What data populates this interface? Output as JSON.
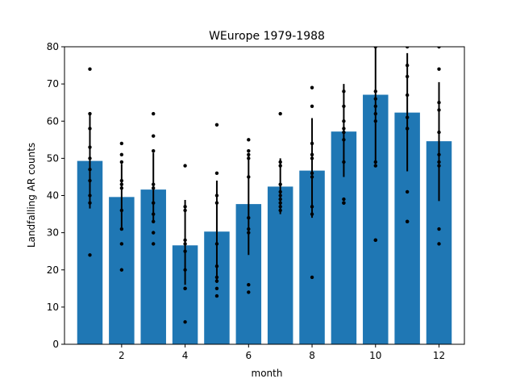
{
  "chart_data": {
    "type": "bar",
    "title": "WEurope 1979-1988",
    "xlabel": "month",
    "ylabel": "Landfalling AR counts",
    "xlim": [
      0.2,
      12.8
    ],
    "ylim": [
      0,
      80
    ],
    "xticks": [
      2,
      4,
      6,
      8,
      10,
      12
    ],
    "yticks": [
      0,
      10,
      20,
      30,
      40,
      50,
      60,
      70,
      80
    ],
    "bar_color": "#1f77b4",
    "point_color": "#000000",
    "errorbar_color": "#000000",
    "grid": false,
    "categories": [
      1,
      2,
      3,
      4,
      5,
      6,
      7,
      8,
      9,
      10,
      11,
      12
    ],
    "values": [
      49.3,
      39.6,
      41.6,
      26.6,
      30.3,
      37.7,
      42.4,
      46.7,
      57.2,
      67.1,
      62.3,
      54.6
    ],
    "error_low": [
      36.5,
      31.0,
      33.0,
      16.0,
      16.5,
      24.0,
      35.0,
      34.0,
      45.0,
      48.5,
      46.5,
      38.5
    ],
    "error_high": [
      62.0,
      48.5,
      51.5,
      38.8,
      44.0,
      51.0,
      50.0,
      60.8,
      70.0,
      80.5,
      78.3,
      70.5
    ],
    "points": [
      [
        74,
        62,
        58,
        53,
        50,
        47,
        44,
        40,
        38,
        24
      ],
      [
        54,
        51,
        49,
        44,
        43,
        42,
        36,
        31,
        27,
        20
      ],
      [
        62,
        56,
        52,
        43,
        42,
        38,
        35,
        33,
        30,
        27
      ],
      [
        48,
        37,
        36,
        28,
        27,
        25,
        20,
        15,
        15,
        6
      ],
      [
        59,
        46,
        40,
        38,
        27,
        21,
        18,
        17,
        15,
        13
      ],
      [
        55,
        52,
        51,
        50,
        45,
        34,
        31,
        30,
        16,
        14
      ],
      [
        62,
        49,
        48,
        43,
        41,
        40,
        39,
        38,
        37,
        36
      ],
      [
        69,
        64,
        54,
        51,
        50,
        46,
        45,
        37,
        35,
        18
      ],
      [
        68,
        64,
        60,
        58,
        57,
        55,
        49,
        39,
        38,
        38
      ],
      [
        80,
        68,
        66,
        64,
        62,
        60,
        49,
        48,
        28,
        28
      ],
      [
        80,
        75,
        72,
        67,
        61,
        58,
        58,
        41,
        33,
        33
      ],
      [
        80,
        74,
        65,
        63,
        57,
        51,
        49,
        48,
        31,
        27
      ]
    ]
  }
}
